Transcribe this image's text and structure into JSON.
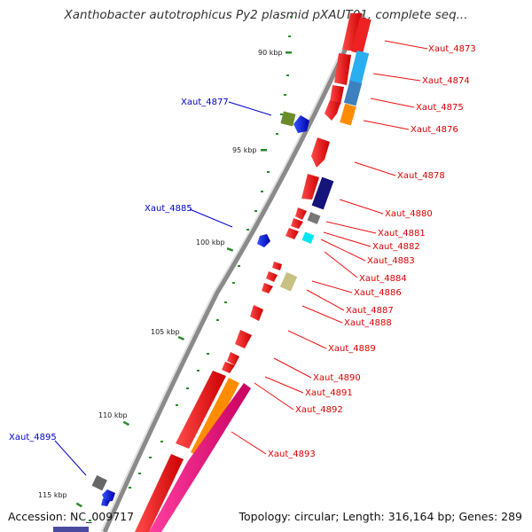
{
  "header": {
    "title": "Xanthobacter autotrophicus Py2 plasmid pXAUT01, complete seq..."
  },
  "footer": {
    "accession": "Accession: NC_009717",
    "summary": "Topology: circular; Length: 316,164 bp; Genes: 289"
  },
  "colors": {
    "backbone": "#8a8a8a",
    "forward_gene": "#ee1111",
    "reverse_gene": "#1111ee",
    "forward_label": "#dd0000",
    "reverse_label": "#0000cc",
    "tick": "#2b8a2b"
  },
  "ticks": [
    "90 kbp",
    "95 kbp",
    "100 kbp",
    "105 kbp",
    "110 kbp",
    "115 kbp"
  ],
  "genes_forward": [
    "Xaut_4873",
    "Xaut_4874",
    "Xaut_4875",
    "Xaut_4876",
    "Xaut_4878",
    "Xaut_4880",
    "Xaut_4881",
    "Xaut_4882",
    "Xaut_4883",
    "Xaut_4884",
    "Xaut_4886",
    "Xaut_4887",
    "Xaut_4888",
    "Xaut_4889",
    "Xaut_4890",
    "Xaut_4891",
    "Xaut_4892",
    "Xaut_4893"
  ],
  "genes_reverse": [
    "Xaut_4877",
    "Xaut_4885",
    "Xaut_4895"
  ]
}
